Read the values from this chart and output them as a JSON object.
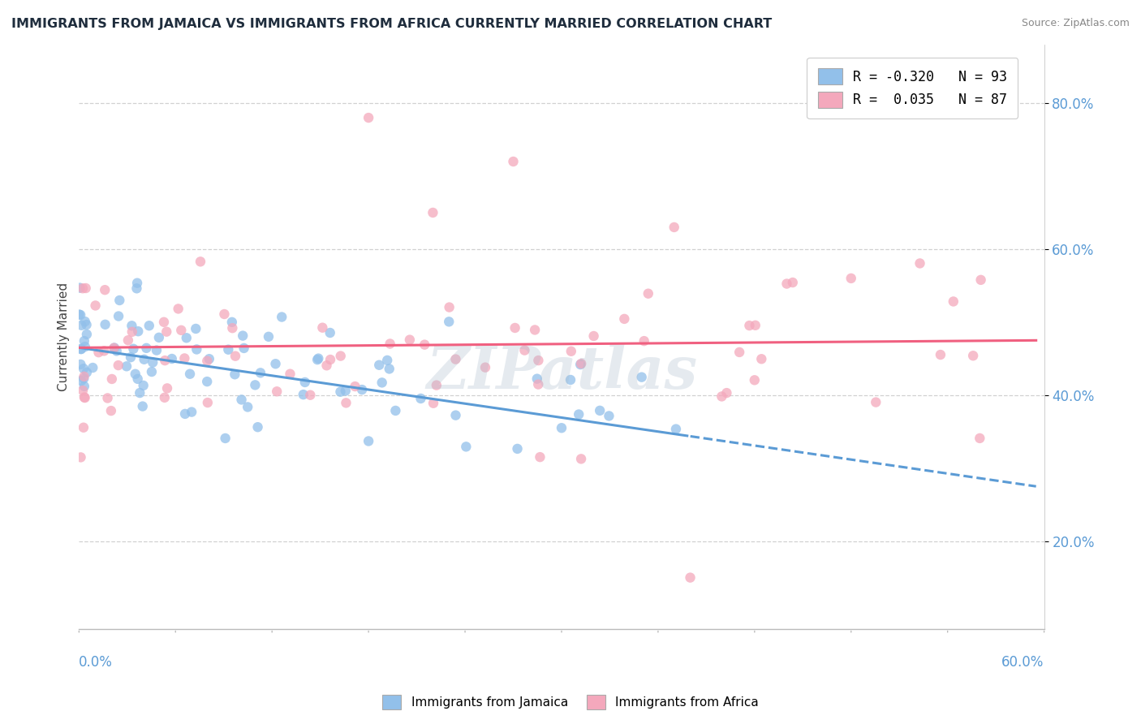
{
  "title": "IMMIGRANTS FROM JAMAICA VS IMMIGRANTS FROM AFRICA CURRENTLY MARRIED CORRELATION CHART",
  "source_text": "Source: ZipAtlas.com",
  "ylabel": "Currently Married",
  "xmin": 0.0,
  "xmax": 0.6,
  "ymin": 0.08,
  "ymax": 0.88,
  "y_ticks": [
    0.2,
    0.4,
    0.6,
    0.8
  ],
  "y_tick_labels": [
    "20.0%",
    "40.0%",
    "60.0%",
    "80.0%"
  ],
  "jamaica_R": -0.32,
  "jamaica_N": 93,
  "africa_R": 0.035,
  "africa_N": 87,
  "jamaica_color": "#92C0EA",
  "africa_color": "#F4A8BC",
  "jamaica_line_color": "#5B9BD5",
  "africa_line_color": "#F06080",
  "legend_jamaica_label": "R = -0.320   N = 93",
  "legend_africa_label": "R =  0.035   N = 87",
  "watermark": "ZIPatlas",
  "background_color": "#FFFFFF",
  "grid_color": "#CCCCCC",
  "title_color": "#1F2D3D",
  "axis_label_color": "#5B9BD5",
  "jamaica_trend_split": 0.38,
  "africa_line_ystart": 0.465,
  "africa_line_yend": 0.475,
  "jamaica_line_ystart": 0.465,
  "jamaica_line_yend": 0.275
}
